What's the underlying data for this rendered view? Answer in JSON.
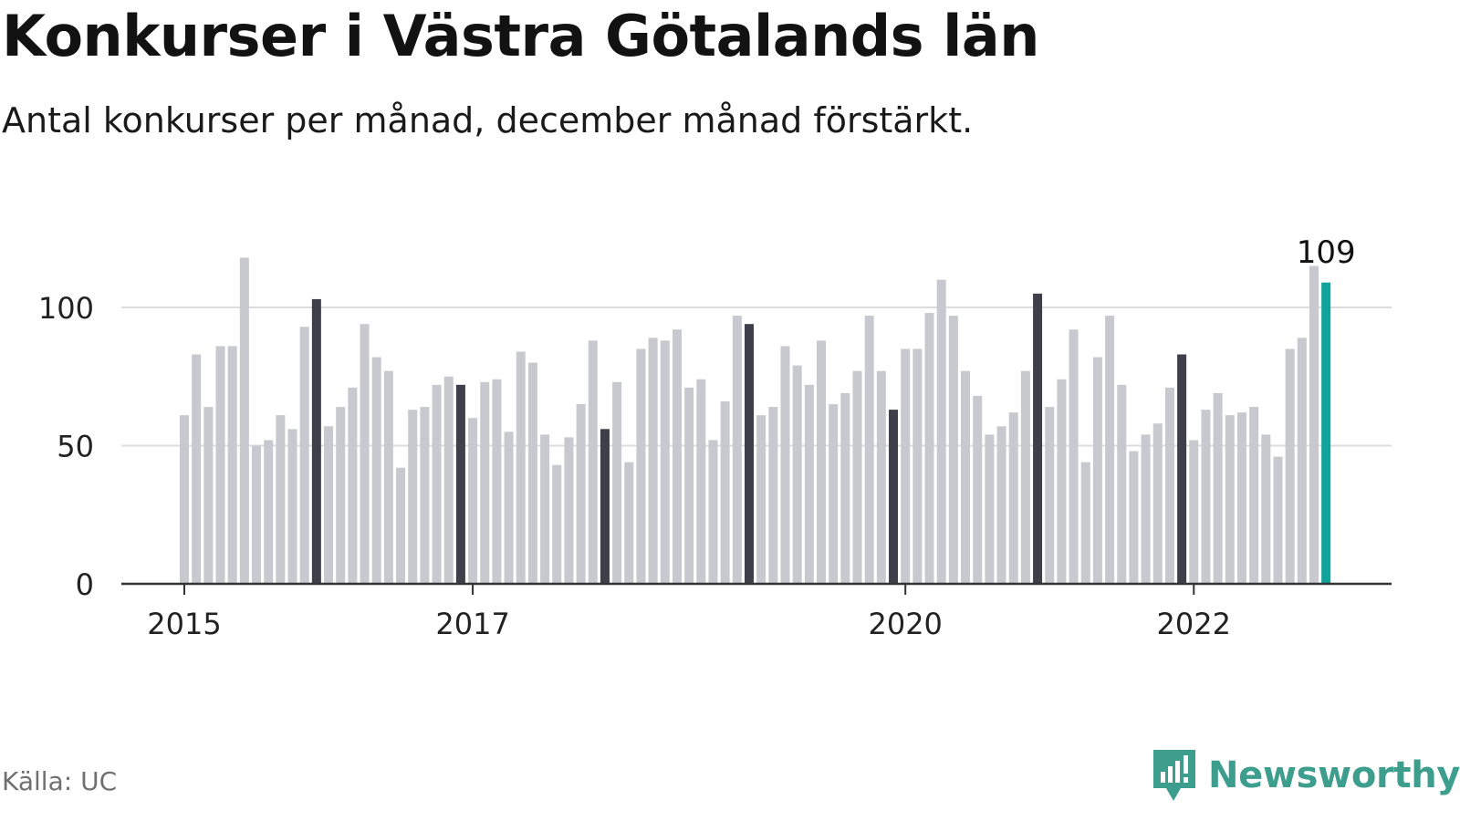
{
  "title": "Konkurser i Västra Götalands län",
  "subtitle": "Antal konkurser per månad, december månad förstärkt.",
  "source": "Källa: UC",
  "brand": {
    "name": "Newsworthy",
    "icon": "newsworthy-logo-icon"
  },
  "colors": {
    "bar_default": "#c8c8cf",
    "bar_december": "#3f3f4b",
    "bar_latest": "#0fa39b",
    "gridline": "#dcdcdc",
    "axis": "#333333",
    "brand": "#3d9e8e"
  },
  "chart_data": {
    "type": "bar",
    "x_start": "2015-01",
    "frequency": "monthly",
    "xticks": [
      "2015",
      "2017",
      "2020",
      "2022"
    ],
    "xtick_months": [
      "2015-01",
      "2017-01",
      "2020-01",
      "2022-01"
    ],
    "yticks": [
      0,
      50,
      100
    ],
    "ylim": [
      0,
      120
    ],
    "grid": true,
    "highlight": "december",
    "latest_label": "109",
    "values": [
      61,
      83,
      64,
      86,
      86,
      118,
      50,
      52,
      61,
      56,
      93,
      103,
      57,
      64,
      71,
      94,
      82,
      77,
      42,
      63,
      64,
      72,
      75,
      72,
      60,
      73,
      74,
      55,
      84,
      80,
      54,
      43,
      53,
      65,
      88,
      56,
      73,
      44,
      85,
      89,
      88,
      92,
      71,
      74,
      52,
      66,
      97,
      94,
      61,
      64,
      86,
      79,
      72,
      88,
      65,
      69,
      77,
      97,
      77,
      63,
      85,
      85,
      98,
      110,
      97,
      77,
      68,
      54,
      57,
      62,
      77,
      105,
      64,
      74,
      92,
      44,
      82,
      97,
      72,
      48,
      54,
      58,
      71,
      83,
      52,
      63,
      69,
      61,
      62,
      64,
      54,
      46,
      85,
      89,
      115,
      109
    ]
  }
}
